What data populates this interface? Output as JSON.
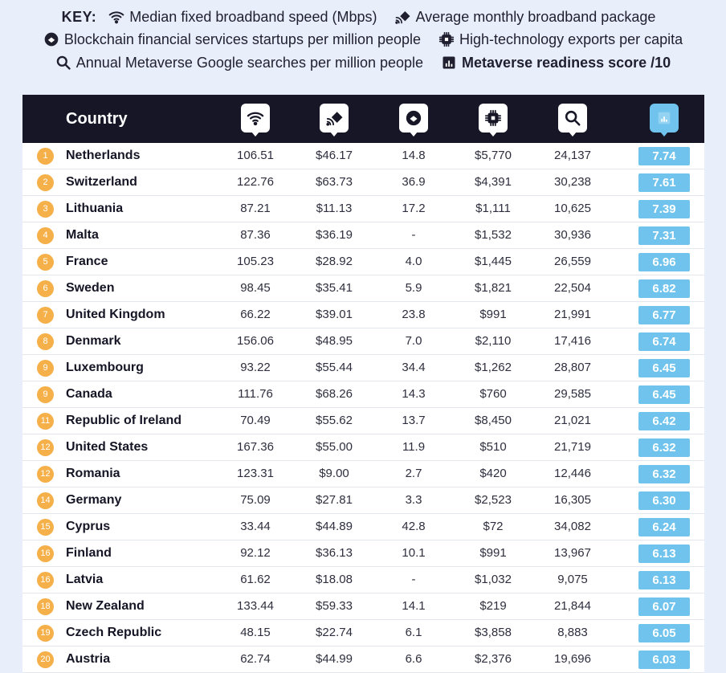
{
  "key": {
    "title": "KEY:",
    "items": {
      "wifi": "Median fixed broadband speed (Mbps)",
      "package": "Average monthly broadband package",
      "blockchain": "Blockchain financial services startups per million people",
      "tech": "High-technology exports per capita",
      "search": "Annual Metaverse Google searches per million people",
      "score": "Metaverse readiness score /10"
    }
  },
  "colors": {
    "header_bg": "#161626",
    "rank_badge": "#f5b04a",
    "score_bar": "#6fc3ec",
    "page_bg": "#e9eefb"
  },
  "table": {
    "country_header": "Country",
    "rows": [
      {
        "rank": "1",
        "country": "Netherlands",
        "speed": "106.51",
        "package": "$46.17",
        "blockchain": "14.8",
        "tech": "$5,770",
        "searches": "24,137",
        "score": "7.74"
      },
      {
        "rank": "2",
        "country": "Switzerland",
        "speed": "122.76",
        "package": "$63.73",
        "blockchain": "36.9",
        "tech": "$4,391",
        "searches": "30,238",
        "score": "7.61"
      },
      {
        "rank": "3",
        "country": "Lithuania",
        "speed": "87.21",
        "package": "$11.13",
        "blockchain": "17.2",
        "tech": "$1,111",
        "searches": "10,625",
        "score": "7.39"
      },
      {
        "rank": "4",
        "country": "Malta",
        "speed": "87.36",
        "package": "$36.19",
        "blockchain": "-",
        "tech": "$1,532",
        "searches": "30,936",
        "score": "7.31"
      },
      {
        "rank": "5",
        "country": "France",
        "speed": "105.23",
        "package": "$28.92",
        "blockchain": "4.0",
        "tech": "$1,445",
        "searches": "26,559",
        "score": "6.96"
      },
      {
        "rank": "6",
        "country": "Sweden",
        "speed": "98.45",
        "package": "$35.41",
        "blockchain": "5.9",
        "tech": "$1,821",
        "searches": "22,504",
        "score": "6.82"
      },
      {
        "rank": "7",
        "country": "United Kingdom",
        "speed": "66.22",
        "package": "$39.01",
        "blockchain": "23.8",
        "tech": "$991",
        "searches": "21,991",
        "score": "6.77"
      },
      {
        "rank": "8",
        "country": "Denmark",
        "speed": "156.06",
        "package": "$48.95",
        "blockchain": "7.0",
        "tech": "$2,110",
        "searches": "17,416",
        "score": "6.74"
      },
      {
        "rank": "9",
        "country": "Luxembourg",
        "speed": "93.22",
        "package": "$55.44",
        "blockchain": "34.4",
        "tech": "$1,262",
        "searches": "28,807",
        "score": "6.45"
      },
      {
        "rank": "9",
        "country": "Canada",
        "speed": "111.76",
        "package": "$68.26",
        "blockchain": "14.3",
        "tech": "$760",
        "searches": "29,585",
        "score": "6.45"
      },
      {
        "rank": "11",
        "country": "Republic of Ireland",
        "speed": "70.49",
        "package": "$55.62",
        "blockchain": "13.7",
        "tech": "$8,450",
        "searches": "21,021",
        "score": "6.42"
      },
      {
        "rank": "12",
        "country": "United States",
        "speed": "167.36",
        "package": "$55.00",
        "blockchain": "11.9",
        "tech": "$510",
        "searches": "21,719",
        "score": "6.32"
      },
      {
        "rank": "12",
        "country": "Romania",
        "speed": "123.31",
        "package": "$9.00",
        "blockchain": "2.7",
        "tech": "$420",
        "searches": "12,446",
        "score": "6.32"
      },
      {
        "rank": "14",
        "country": "Germany",
        "speed": "75.09",
        "package": "$27.81",
        "blockchain": "3.3",
        "tech": "$2,523",
        "searches": "16,305",
        "score": "6.30"
      },
      {
        "rank": "15",
        "country": "Cyprus",
        "speed": "33.44",
        "package": "$44.89",
        "blockchain": "42.8",
        "tech": "$72",
        "searches": "34,082",
        "score": "6.24"
      },
      {
        "rank": "16",
        "country": "Finland",
        "speed": "92.12",
        "package": "$36.13",
        "blockchain": "10.1",
        "tech": "$991",
        "searches": "13,967",
        "score": "6.13"
      },
      {
        "rank": "16",
        "country": "Latvia",
        "speed": "61.62",
        "package": "$18.08",
        "blockchain": "-",
        "tech": "$1,032",
        "searches": "9,075",
        "score": "6.13"
      },
      {
        "rank": "18",
        "country": "New Zealand",
        "speed": "133.44",
        "package": "$59.33",
        "blockchain": "14.1",
        "tech": "$219",
        "searches": "21,844",
        "score": "6.07"
      },
      {
        "rank": "19",
        "country": "Czech Republic",
        "speed": "48.15",
        "package": "$22.74",
        "blockchain": "6.1",
        "tech": "$3,858",
        "searches": "8,883",
        "score": "6.05"
      },
      {
        "rank": "20",
        "country": "Austria",
        "speed": "62.74",
        "package": "$44.99",
        "blockchain": "6.6",
        "tech": "$2,376",
        "searches": "19,696",
        "score": "6.03"
      }
    ]
  },
  "chart_data": {
    "type": "table",
    "columns": [
      "Country",
      "Median fixed broadband speed (Mbps)",
      "Average monthly broadband package",
      "Blockchain financial services startups per million people",
      "High-technology exports per capita",
      "Annual Metaverse Google searches per million people",
      "Metaverse readiness score /10"
    ],
    "categories": [
      "Netherlands",
      "Switzerland",
      "Lithuania",
      "Malta",
      "France",
      "Sweden",
      "United Kingdom",
      "Denmark",
      "Luxembourg",
      "Canada",
      "Republic of Ireland",
      "United States",
      "Romania",
      "Germany",
      "Cyprus",
      "Finland",
      "Latvia",
      "New Zealand",
      "Czech Republic",
      "Austria"
    ],
    "series": [
      {
        "name": "Median fixed broadband speed (Mbps)",
        "values": [
          106.51,
          122.76,
          87.21,
          87.36,
          105.23,
          98.45,
          66.22,
          156.06,
          93.22,
          111.76,
          70.49,
          167.36,
          123.31,
          75.09,
          33.44,
          92.12,
          61.62,
          133.44,
          48.15,
          62.74
        ]
      },
      {
        "name": "Average monthly broadband package",
        "values": [
          46.17,
          63.73,
          11.13,
          36.19,
          28.92,
          35.41,
          39.01,
          48.95,
          55.44,
          68.26,
          55.62,
          55.0,
          9.0,
          27.81,
          44.89,
          36.13,
          18.08,
          59.33,
          22.74,
          44.99
        ]
      },
      {
        "name": "Blockchain financial services startups per million people",
        "values": [
          14.8,
          36.9,
          17.2,
          null,
          4.0,
          5.9,
          23.8,
          7.0,
          34.4,
          14.3,
          13.7,
          11.9,
          2.7,
          3.3,
          42.8,
          10.1,
          null,
          14.1,
          6.1,
          6.6
        ]
      },
      {
        "name": "High-technology exports per capita",
        "values": [
          5770,
          4391,
          1111,
          1532,
          1445,
          1821,
          991,
          2110,
          1262,
          760,
          8450,
          510,
          420,
          2523,
          72,
          991,
          1032,
          219,
          3858,
          2376
        ]
      },
      {
        "name": "Annual Metaverse Google searches per million people",
        "values": [
          24137,
          30238,
          10625,
          30936,
          26559,
          22504,
          21991,
          17416,
          28807,
          29585,
          21021,
          21719,
          12446,
          16305,
          34082,
          13967,
          9075,
          21844,
          8883,
          19696
        ]
      },
      {
        "name": "Metaverse readiness score /10",
        "values": [
          7.74,
          7.61,
          7.39,
          7.31,
          6.96,
          6.82,
          6.77,
          6.74,
          6.45,
          6.45,
          6.42,
          6.32,
          6.32,
          6.3,
          6.24,
          6.13,
          6.13,
          6.07,
          6.05,
          6.03
        ]
      }
    ]
  }
}
